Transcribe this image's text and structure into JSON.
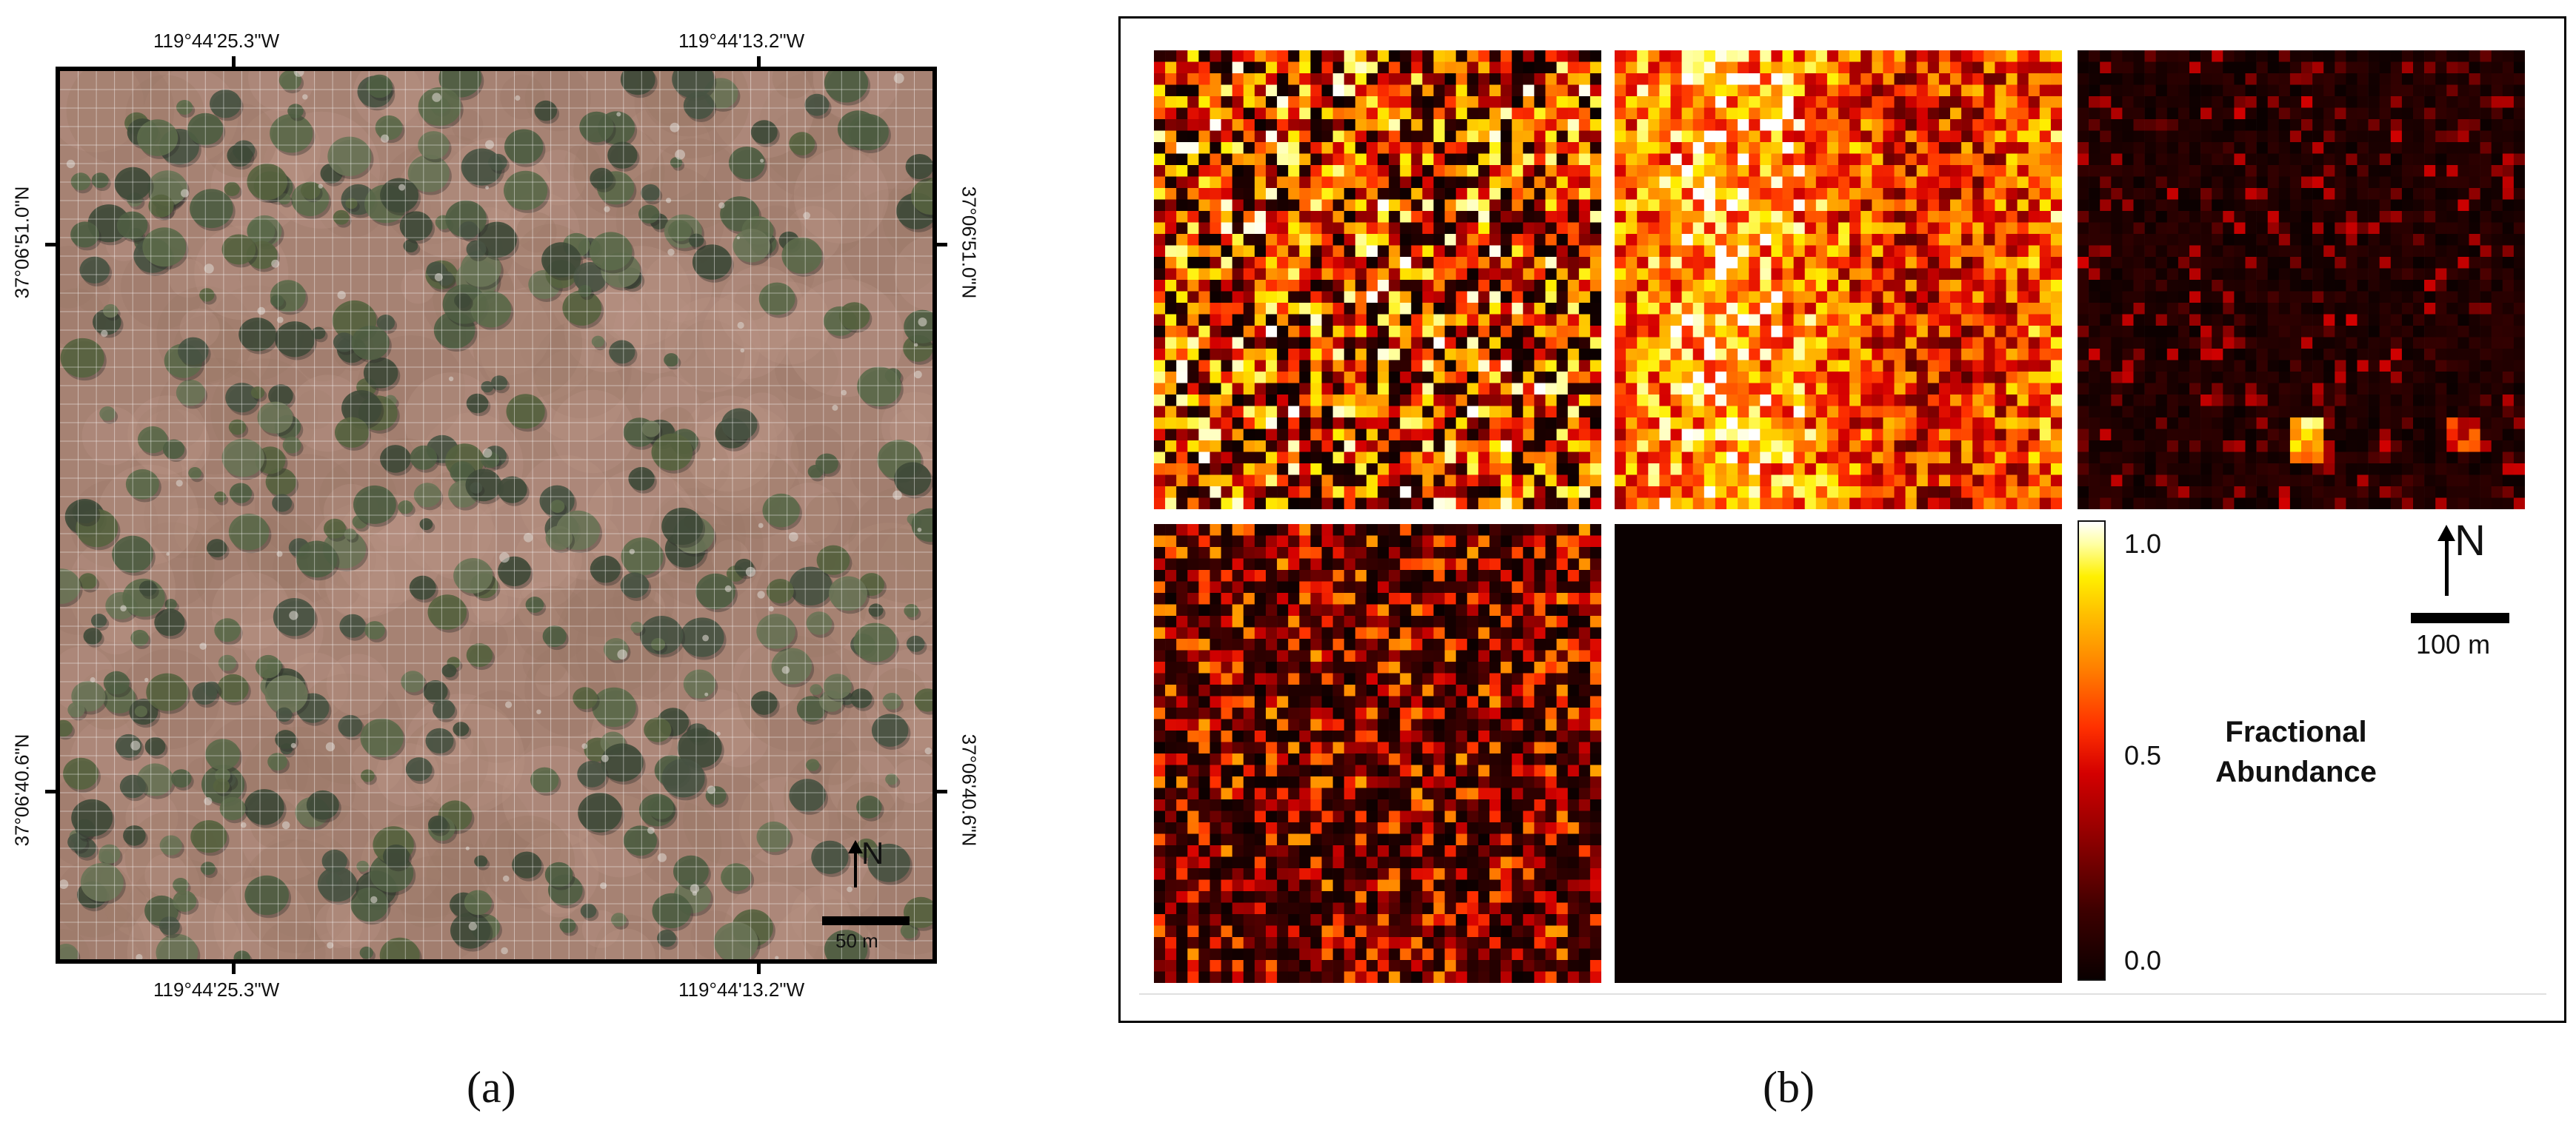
{
  "panel_a": {
    "coords_top": [
      "119°44'25.3\"W",
      "119°44'13.2\"W"
    ],
    "coords_bottom": [
      "119°44'25.3\"W",
      "119°44'13.2\"W"
    ],
    "coords_left": [
      "37°06'51.0\"N",
      "37°06'40.6\"N"
    ],
    "coords_right": [
      "37°06'51.0\"N",
      "37°06'40.6\"N"
    ],
    "north_label": "N",
    "scale_label": "50 m",
    "figure_label": "(a)"
  },
  "panel_b": {
    "colorbar_ticks": [
      "1.0",
      "0.5",
      "0.0"
    ],
    "colorbar_label_line1": "Fractional",
    "colorbar_label_line2": "Abundance",
    "north_label": "N",
    "scale_label": "100 m",
    "figure_label": "(b)"
  },
  "colors": {
    "soil": "#a68273",
    "vegetation": "#4f5e42",
    "heat_low": "#0a0000",
    "heat_high": "#ffffff"
  }
}
